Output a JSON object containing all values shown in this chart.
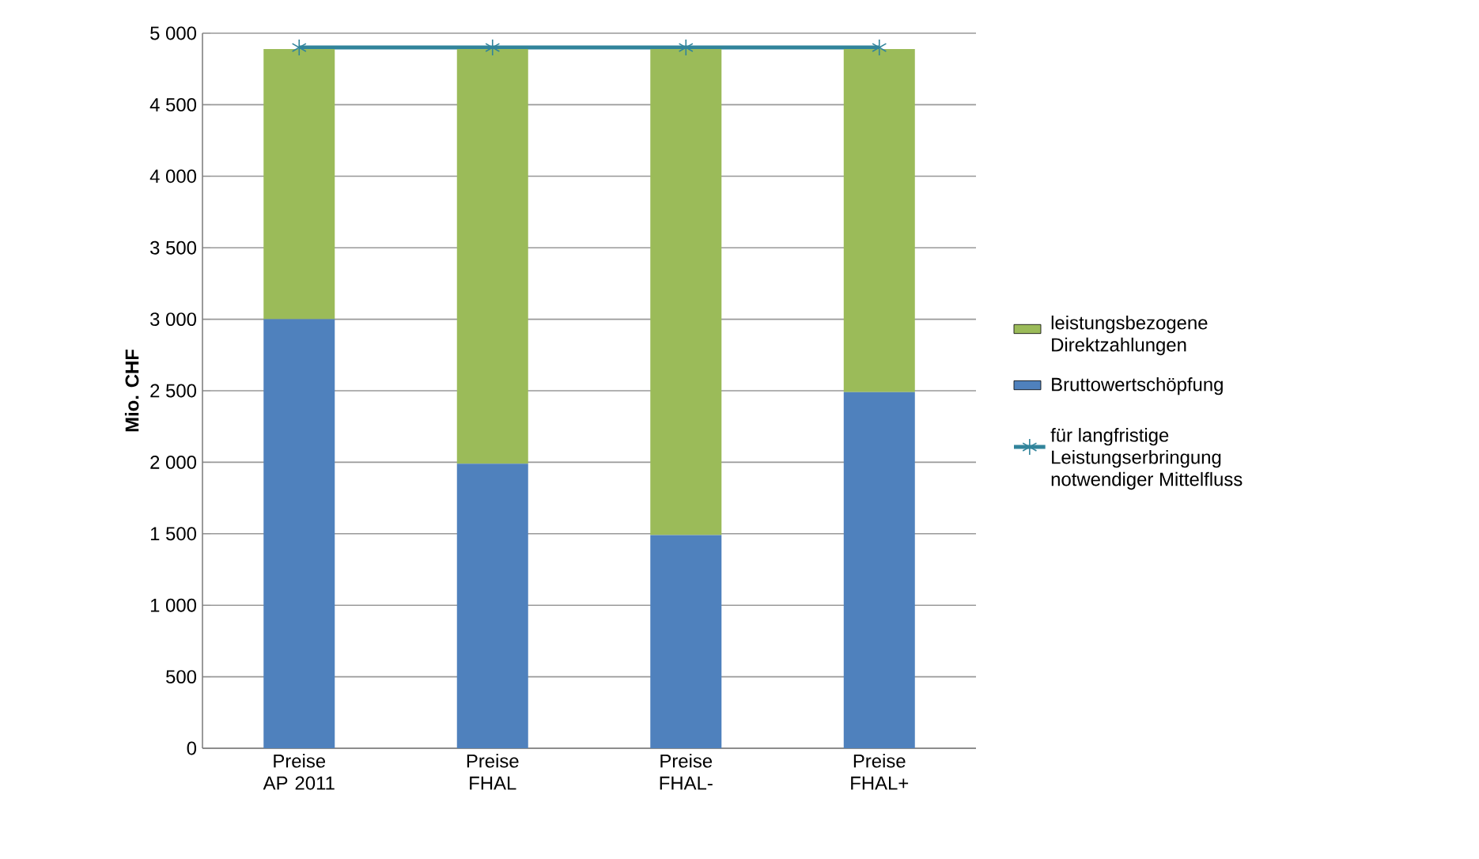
{
  "chart_data": {
    "type": "bar",
    "stacked": true,
    "ylabel": "Mio. CHF",
    "categories": [
      "Preise AP 2011",
      "Preise FHAL",
      "Preise FHAL-",
      "Preise FHAL+"
    ],
    "series": [
      {
        "name": "Bruttowertschöpfung",
        "color": "#4f81bd",
        "values": [
          3000,
          1990,
          1490,
          2490
        ]
      },
      {
        "name": "leistungsbezogene Direktzahlungen",
        "color": "#9bbb59",
        "values": [
          1890,
          2900,
          3400,
          2400
        ]
      },
      {
        "name": "für langfristige Leistungserbringung notwendiger Mittelfluss",
        "type": "line",
        "color": "#31849b",
        "marker": "cross",
        "values": [
          4900,
          4900,
          4900,
          4900
        ]
      }
    ],
    "ylim": [
      0,
      5000
    ],
    "yticks": [
      0,
      500,
      {
        "value": 1000,
        "label": "1 000"
      },
      {
        "value": 1500,
        "label": "1 500"
      },
      {
        "value": 2000,
        "label": "2 000"
      },
      {
        "value": 2500,
        "label": "2 500"
      },
      {
        "value": 3000,
        "label": "3 000"
      },
      {
        "value": 3500,
        "label": "3 500"
      },
      {
        "value": 4000,
        "label": "4 000"
      },
      {
        "value": 4500,
        "label": "4 500"
      },
      {
        "value": 5000,
        "label": "5 000"
      }
    ],
    "grid": "y",
    "legend": "right"
  }
}
